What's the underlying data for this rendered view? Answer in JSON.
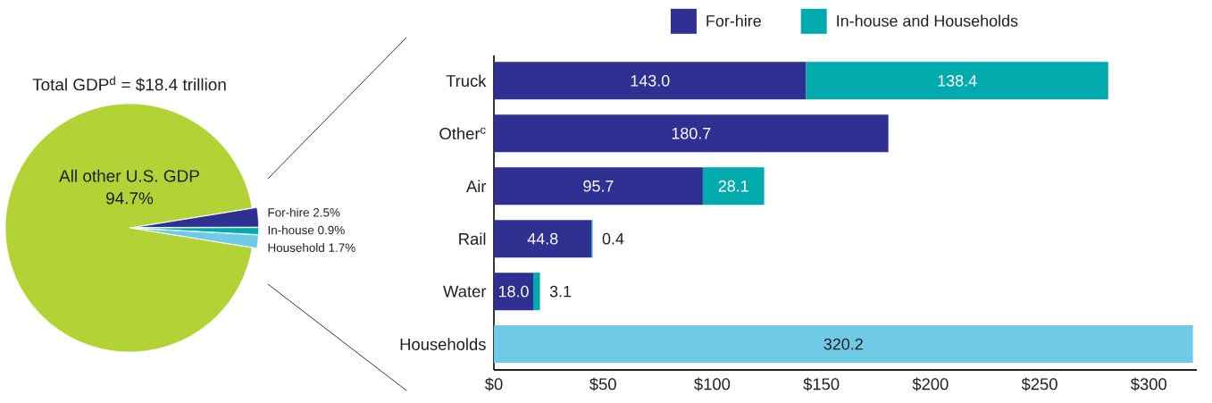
{
  "chart_data": [
    {
      "type": "pie",
      "title": "Total GDP$^{d}$ = $18.4 trillion",
      "categories": [
        "All other U.S. GDP",
        "For-hire",
        "In-house",
        "Household"
      ],
      "values": [
        94.7,
        2.5,
        0.9,
        1.7
      ],
      "colors": [
        "#b3d235",
        "#2e3192",
        "#00aaad",
        "#6ecae5"
      ],
      "value_labels": [
        "94.7%",
        "2.5%",
        "0.9%",
        "1.7%"
      ]
    },
    {
      "type": "bar",
      "orientation": "horizontal",
      "stacked": true,
      "categories": [
        "Truck",
        "Other$^{c}$",
        "Air",
        "Rail",
        "Water",
        "Households"
      ],
      "series": [
        {
          "name": "For-hire",
          "color": "#2e3192",
          "values": [
            143.0,
            180.7,
            95.7,
            44.8,
            18.0,
            null
          ],
          "value_labels": [
            "143.0",
            "180.7",
            "95.7",
            "44.8",
            "18.0",
            null
          ]
        },
        {
          "name": "In-house and Households",
          "color": "#00aaad",
          "values": [
            138.4,
            null,
            28.1,
            0.4,
            3.1,
            null
          ],
          "value_labels": [
            "138.4",
            null,
            "28.1",
            "0.4",
            "3.1",
            null
          ]
        },
        {
          "color": "#6ecae5",
          "values": [
            null,
            null,
            null,
            null,
            null,
            320.2
          ],
          "value_labels": [
            null,
            null,
            null,
            null,
            null,
            "320.2"
          ]
        }
      ],
      "xlim": [
        0,
        322
      ],
      "xticks": [
        {
          "value": 0,
          "label": "$0"
        },
        {
          "value": 50,
          "label": "$50"
        },
        {
          "value": 100,
          "label": "$100"
        },
        {
          "value": 150,
          "label": "$150"
        },
        {
          "value": 200,
          "label": "$200"
        },
        {
          "value": 250,
          "label": "$250"
        },
        {
          "value": 300,
          "label": "$300"
        }
      ],
      "legend": "top"
    }
  ]
}
